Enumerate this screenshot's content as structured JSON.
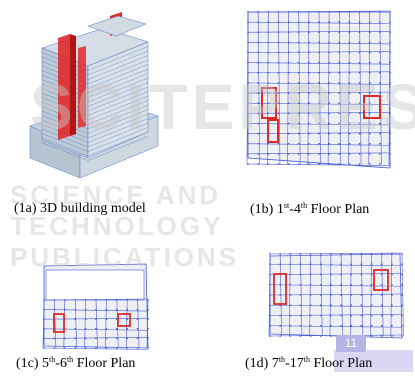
{
  "figure": {
    "panels": [
      {
        "id": "1a",
        "caption": {
          "pre": "(1a) 3D building model",
          "sup": "",
          "post": ""
        }
      },
      {
        "id": "1b",
        "caption": {
          "pre": "(1b) 1",
          "sup1": "st",
          "mid": "-4",
          "sup2": "th",
          "post": " Floor Plan"
        }
      },
      {
        "id": "1c",
        "caption": {
          "pre": "(1c) 5",
          "sup1": "th",
          "mid": "-6",
          "sup2": "th",
          "post": " Floor Plan"
        }
      },
      {
        "id": "1d",
        "caption": {
          "pre": "(1d) 7",
          "sup1": "th",
          "mid": "-17",
          "sup2": "th",
          "post": " Floor Plan"
        }
      }
    ]
  },
  "watermark": {
    "line1": "SCITEPRESS",
    "line2": "SCIENCE AND TECHNOLOGY PUBLICATIONS"
  },
  "page_badge": "11",
  "colors": {
    "grid": "#4a5bd6",
    "slab": "#e8e8ee",
    "wall": "#e02a2a",
    "highlight": "#d9d7f4"
  }
}
